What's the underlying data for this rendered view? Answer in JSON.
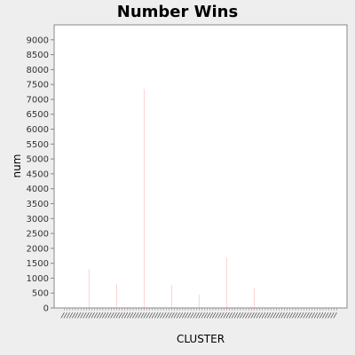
{
  "chart_data": {
    "type": "bar",
    "title": "Number Wins",
    "xlabel": "CLUSTER",
    "ylabel": "num",
    "ylim": [
      0,
      9500
    ],
    "yticks": [
      0,
      500,
      1000,
      1500,
      2000,
      2500,
      3000,
      3500,
      4000,
      4500,
      5000,
      5500,
      6000,
      6500,
      7000,
      7500,
      8000,
      8500,
      9000
    ],
    "grid": false,
    "legend": "none",
    "category_count": 100,
    "values": [
      0,
      0,
      0,
      0,
      0,
      0,
      0,
      0,
      0,
      1300,
      0,
      0,
      0,
      0,
      0,
      0,
      0,
      0,
      0,
      800,
      0,
      0,
      0,
      0,
      0,
      0,
      0,
      0,
      0,
      7350,
      0,
      0,
      0,
      0,
      0,
      0,
      0,
      0,
      0,
      780,
      0,
      0,
      0,
      0,
      0,
      0,
      0,
      0,
      0,
      450,
      0,
      0,
      0,
      0,
      0,
      0,
      0,
      0,
      0,
      1680,
      0,
      0,
      0,
      0,
      0,
      0,
      0,
      0,
      0,
      680,
      0,
      0,
      0,
      0,
      0,
      0,
      0,
      0,
      0,
      0,
      0,
      0,
      0,
      0,
      0,
      0,
      0,
      0,
      0,
      0,
      0,
      0,
      0,
      0,
      0,
      0,
      0,
      0,
      0,
      0
    ],
    "bar_color": "#ff8080",
    "plot_background": "#ffffff",
    "page_background": "#eeeeee"
  }
}
